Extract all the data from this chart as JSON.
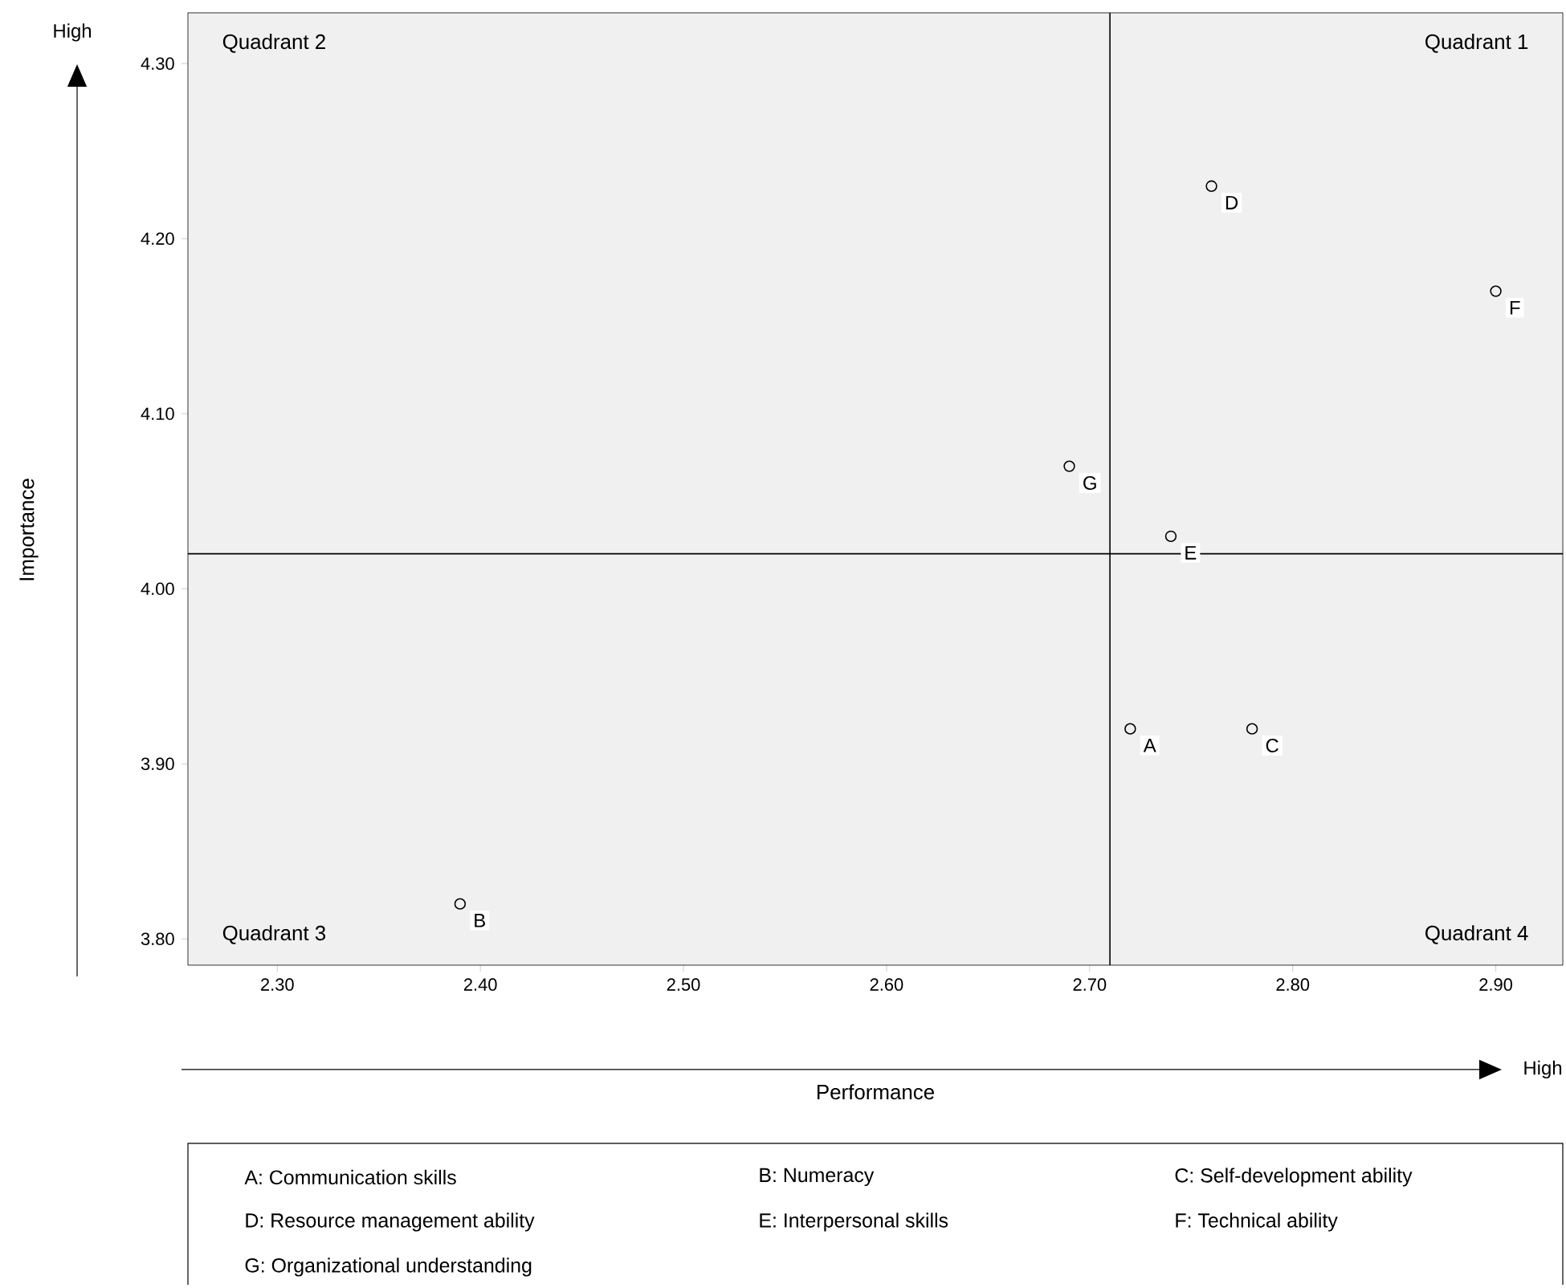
{
  "chart_data": {
    "type": "scatter",
    "xlabel": "Performance",
    "ylabel": "Importance",
    "x": [
      2.72,
      2.39,
      2.78,
      2.76,
      2.74,
      2.9,
      2.69
    ],
    "series": [
      {
        "color": "#000000",
        "values": [
          3.92,
          3.82,
          3.92,
          4.23,
          4.03,
          4.17,
          4.07
        ]
      }
    ],
    "marker": "circle",
    "grid": false,
    "xlim": [
      2.256,
      2.933
    ],
    "ylim": [
      3.785,
      4.329
    ],
    "xticks": [
      {
        "value": 2.3,
        "label": "2.30"
      },
      {
        "value": 2.4,
        "label": "2.40"
      },
      {
        "value": 2.5,
        "label": "2.50"
      },
      {
        "value": 2.6,
        "label": "2.60"
      },
      {
        "value": 2.7,
        "label": "2.70"
      },
      {
        "value": 2.8,
        "label": "2.80"
      },
      {
        "value": 2.9,
        "label": "2.90"
      }
    ],
    "yticks": [
      {
        "value": 3.8,
        "label": "3.80"
      },
      {
        "value": 3.9,
        "label": "3.90"
      },
      {
        "value": 4.0,
        "label": "4.00"
      },
      {
        "value": 4.1,
        "label": "4.10"
      },
      {
        "value": 4.2,
        "label": "4.20"
      },
      {
        "value": 4.3,
        "label": "4.30"
      }
    ],
    "ref_lines": [
      {
        "axis": "x",
        "value": 2.71,
        "color": "#000000"
      },
      {
        "axis": "y",
        "value": 4.02,
        "color": "#000000"
      }
    ],
    "annotations": [
      {
        "text": "A",
        "x": 2.72,
        "y": 3.92
      },
      {
        "text": "B",
        "x": 2.39,
        "y": 3.82
      },
      {
        "text": "C",
        "x": 2.78,
        "y": 3.92
      },
      {
        "text": "D",
        "x": 2.76,
        "y": 4.23
      },
      {
        "text": "E",
        "x": 2.74,
        "y": 4.03
      },
      {
        "text": "F",
        "x": 2.9,
        "y": 4.17
      },
      {
        "text": "G",
        "x": 2.69,
        "y": 4.07
      },
      "Quadrant 2",
      "Quadrant 1",
      "Quadrant 3",
      "Quadrant 4",
      "High",
      "High",
      "A: Communication skills",
      "B: Numeracy",
      "C: Self-development ability",
      "D: Resource management ability",
      "E: Interpersonal skills",
      "F: Technical ability",
      "G: Organizational understanding"
    ]
  }
}
